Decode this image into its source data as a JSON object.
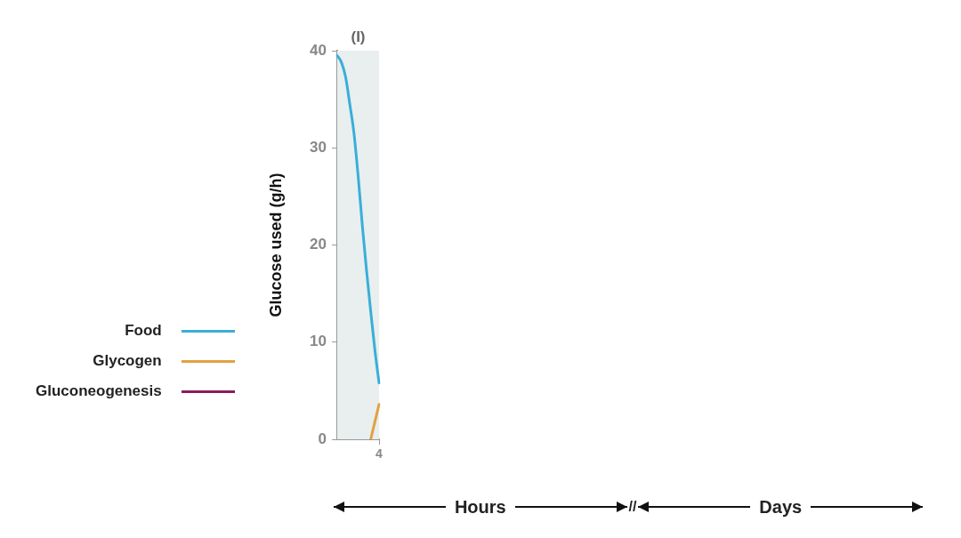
{
  "chart_data": {
    "type": "line",
    "ylabel": "Glucose used (g/h)",
    "ylim": [
      0,
      40
    ],
    "yticks": [
      0,
      10,
      20,
      30,
      40
    ],
    "grid": false,
    "legend": "left",
    "marker": "none",
    "line_style": "solid",
    "categories": [
      null,
      null,
      null,
      null,
      null,
      null,
      null,
      null,
      null,
      null,
      "4"
    ],
    "series": [
      {
        "name": "Food",
        "color": "#3aaed8",
        "values": [
          39.5,
          38.8,
          37.3,
          34.5,
          31.5,
          27.1,
          22,
          17.4,
          13.2,
          9.2,
          5.8
        ]
      },
      {
        "name": "Glycogen",
        "color": "#e3a043",
        "values": [
          null,
          null,
          null,
          null,
          null,
          null,
          null,
          null,
          0,
          1.8,
          3.6
        ]
      },
      {
        "name": "Gluconeogenesis",
        "color": "#8a1c5c",
        "values": [
          null,
          null,
          null,
          null,
          null,
          null,
          null,
          null,
          null,
          null,
          null
        ]
      }
    ],
    "title": "(I)",
    "annotations": [
      "Hours",
      "//",
      "Days"
    ]
  }
}
